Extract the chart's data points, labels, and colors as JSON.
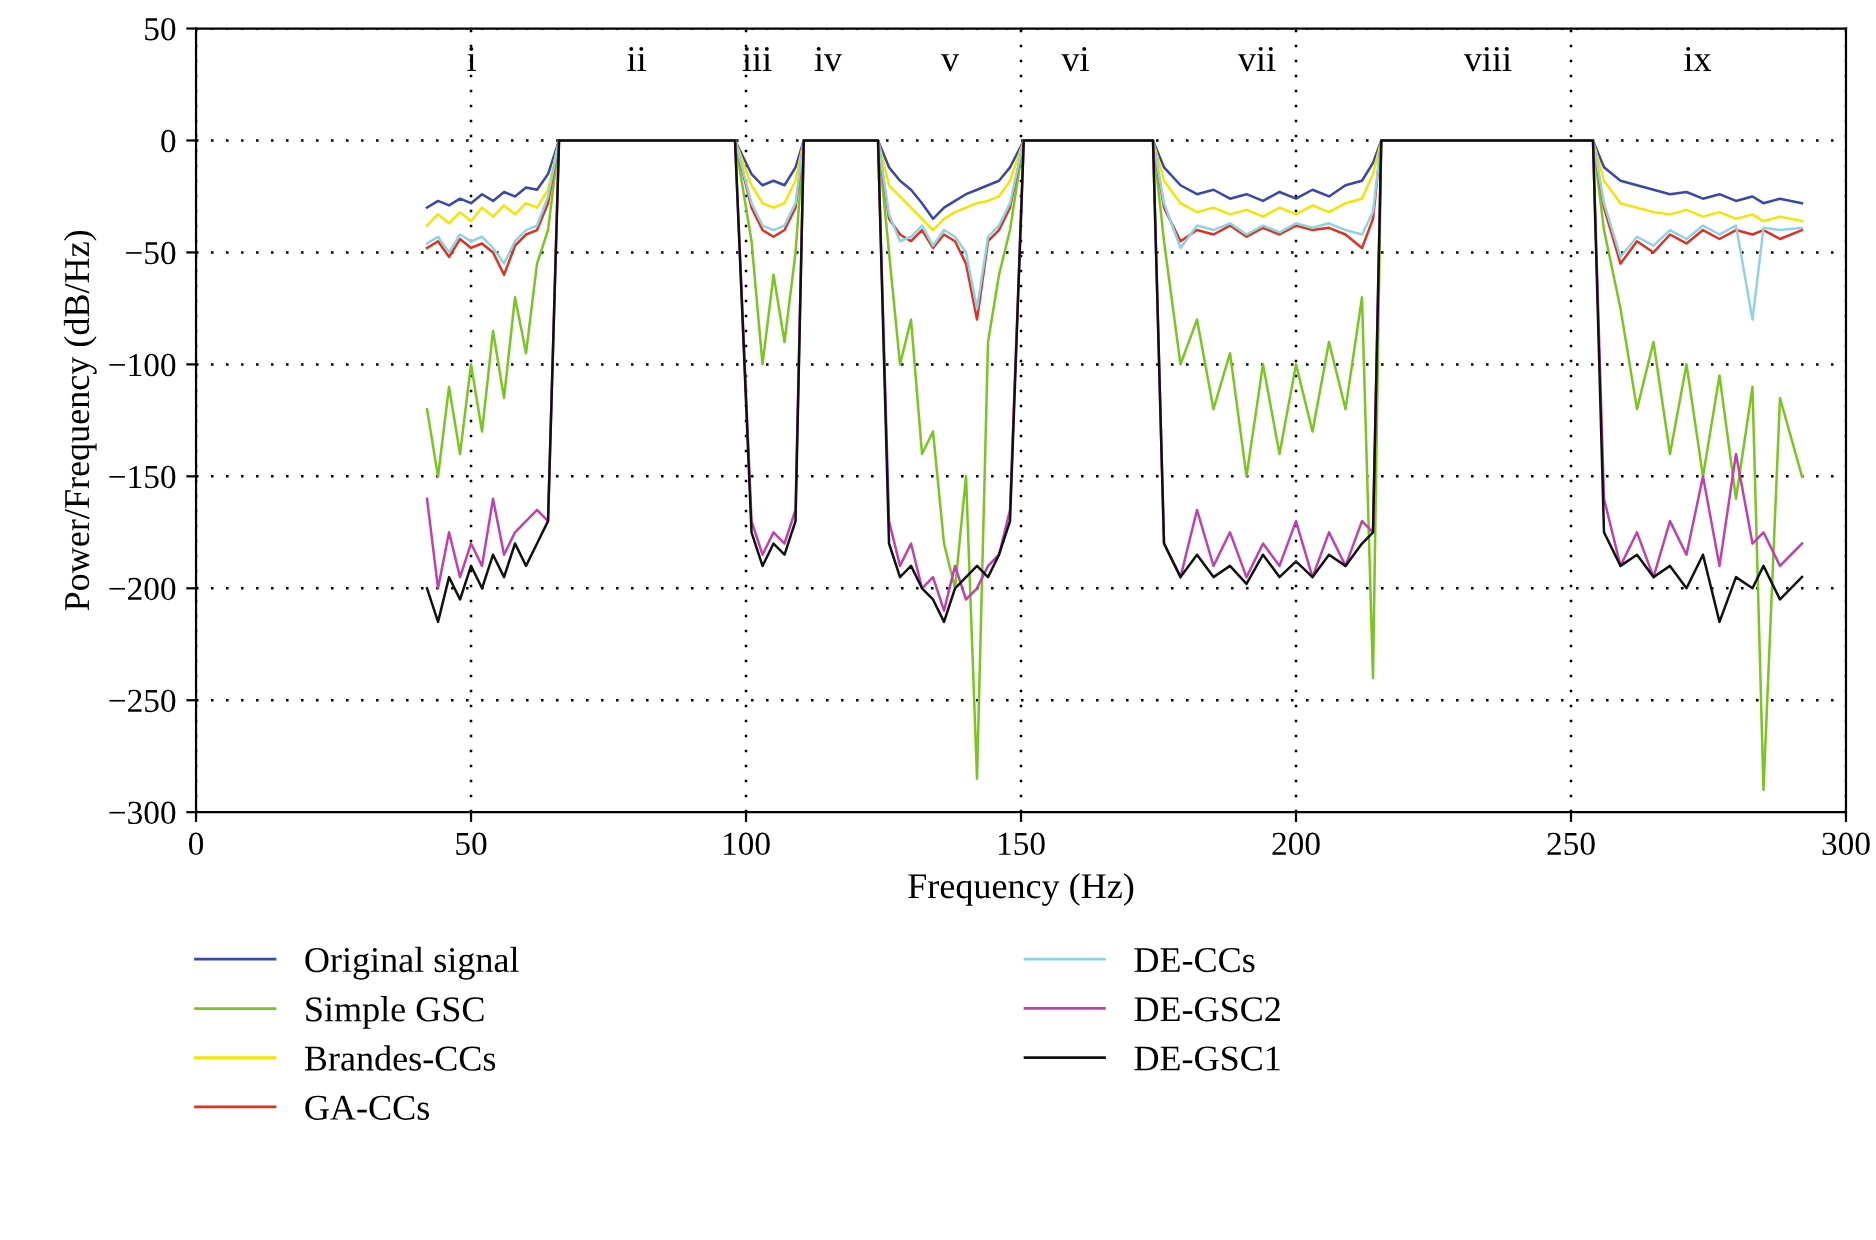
{
  "chart_data": {
    "type": "line",
    "xlabel": "Frequency (Hz)",
    "ylabel": "Power/Frequency (dB/Hz)",
    "xlim": [
      0,
      300
    ],
    "ylim": [
      -300,
      50
    ],
    "xticks": [
      0,
      50,
      100,
      150,
      200,
      250,
      300
    ],
    "yticks": [
      {
        "value": -300,
        "label": "−300"
      },
      {
        "value": -250,
        "label": "−250"
      },
      {
        "value": -200,
        "label": "−200"
      },
      {
        "value": -150,
        "label": "−150"
      },
      {
        "value": -100,
        "label": "−100"
      },
      {
        "value": -50,
        "label": "−50"
      },
      0,
      50
    ],
    "grid": true,
    "legend": "bottom",
    "line_style": "solid",
    "marker": "none",
    "annotations": [
      "i",
      "ii",
      "iii",
      "iv",
      "v",
      "vi",
      "vii",
      "viii",
      "ix"
    ],
    "x": [
      42,
      44,
      46,
      48,
      50,
      52,
      54,
      56,
      58,
      60,
      62,
      64,
      66,
      70,
      80,
      90,
      98,
      101,
      103,
      105,
      107,
      109,
      110.5,
      115,
      120,
      124,
      126,
      128,
      130,
      132,
      134,
      136,
      138,
      140,
      142,
      144,
      146,
      148,
      150.5,
      155,
      160,
      165,
      170,
      174,
      176,
      179,
      182,
      185,
      188,
      191,
      194,
      197,
      200,
      203,
      206,
      209,
      212,
      214,
      215.5,
      225,
      235,
      245,
      254,
      256,
      259,
      262,
      265,
      268,
      271,
      274,
      277,
      280,
      283,
      285,
      288,
      292
    ],
    "series": [
      {
        "name": "Original signal",
        "color": "#3a47a8",
        "values": [
          -30,
          -27,
          -29,
          -26,
          -28,
          -24,
          -27,
          -23,
          -25,
          -21,
          -22,
          -15,
          0,
          0,
          0,
          0,
          0,
          -15,
          -20,
          -18,
          -20,
          -12,
          0,
          0,
          0,
          0,
          -12,
          -18,
          -22,
          -28,
          -35,
          -30,
          -27,
          -24,
          -22,
          -20,
          -18,
          -12,
          0,
          0,
          0,
          0,
          0,
          0,
          -12,
          -20,
          -24,
          -22,
          -26,
          -24,
          -27,
          -23,
          -26,
          -22,
          -25,
          -20,
          -18,
          -10,
          0,
          0,
          0,
          0,
          0,
          -12,
          -18,
          -20,
          -22,
          -24,
          -23,
          -26,
          -24,
          -27,
          -25,
          -28,
          -26,
          -28
        ]
      },
      {
        "name": "Simple GSC",
        "color": "#7ac520",
        "values": [
          -120,
          -150,
          -110,
          -140,
          -100,
          -130,
          -85,
          -115,
          -70,
          -95,
          -55,
          -40,
          0,
          0,
          0,
          0,
          0,
          -45,
          -100,
          -60,
          -90,
          -50,
          0,
          0,
          0,
          0,
          -50,
          -100,
          -80,
          -140,
          -130,
          -180,
          -200,
          -150,
          -285,
          -90,
          -60,
          -40,
          0,
          0,
          0,
          0,
          0,
          0,
          -45,
          -100,
          -80,
          -120,
          -95,
          -150,
          -100,
          -140,
          -100,
          -130,
          -90,
          -120,
          -70,
          -240,
          0,
          0,
          0,
          0,
          0,
          -40,
          -75,
          -120,
          -90,
          -140,
          -100,
          -150,
          -105,
          -160,
          -110,
          -290,
          -115,
          -150
        ]
      },
      {
        "name": "Brandes-CCs",
        "color": "#f5e400",
        "values": [
          -38,
          -33,
          -37,
          -32,
          -36,
          -30,
          -34,
          -29,
          -33,
          -28,
          -30,
          -22,
          0,
          0,
          0,
          0,
          0,
          -20,
          -28,
          -30,
          -28,
          -18,
          0,
          0,
          0,
          0,
          -20,
          -25,
          -30,
          -35,
          -40,
          -35,
          -32,
          -30,
          -28,
          -27,
          -25,
          -18,
          0,
          0,
          0,
          0,
          0,
          0,
          -18,
          -28,
          -32,
          -30,
          -33,
          -31,
          -34,
          -30,
          -33,
          -29,
          -32,
          -28,
          -26,
          -15,
          0,
          0,
          0,
          0,
          0,
          -18,
          -28,
          -30,
          -32,
          -33,
          -31,
          -34,
          -32,
          -35,
          -33,
          -36,
          -34,
          -36
        ]
      },
      {
        "name": "GA-CCs",
        "color": "#e03020",
        "values": [
          -48,
          -45,
          -52,
          -44,
          -48,
          -46,
          -50,
          -60,
          -47,
          -42,
          -40,
          -28,
          0,
          0,
          0,
          0,
          0,
          -30,
          -40,
          -43,
          -40,
          -30,
          0,
          0,
          0,
          0,
          -35,
          -42,
          -45,
          -40,
          -48,
          -42,
          -45,
          -55,
          -80,
          -45,
          -40,
          -30,
          0,
          0,
          0,
          0,
          0,
          0,
          -30,
          -45,
          -40,
          -42,
          -38,
          -43,
          -39,
          -42,
          -38,
          -40,
          -39,
          -42,
          -48,
          -35,
          0,
          0,
          0,
          0,
          0,
          -30,
          -55,
          -45,
          -50,
          -42,
          -46,
          -40,
          -44,
          -40,
          -42,
          -40,
          -44,
          -40
        ]
      },
      {
        "name": "DE-CCs",
        "color": "#8fd3e3",
        "values": [
          -46,
          -43,
          -50,
          -42,
          -45,
          -43,
          -48,
          -55,
          -45,
          -40,
          -38,
          -25,
          0,
          0,
          0,
          0,
          0,
          -28,
          -38,
          -40,
          -38,
          -28,
          0,
          0,
          0,
          0,
          -33,
          -45,
          -43,
          -38,
          -47,
          -40,
          -43,
          -50,
          -75,
          -43,
          -38,
          -28,
          0,
          0,
          0,
          0,
          0,
          0,
          -28,
          -48,
          -38,
          -40,
          -37,
          -42,
          -38,
          -41,
          -37,
          -39,
          -37,
          -40,
          -42,
          -32,
          0,
          0,
          0,
          0,
          0,
          -28,
          -52,
          -43,
          -47,
          -40,
          -44,
          -38,
          -42,
          -38,
          -80,
          -39,
          -40,
          -39
        ]
      },
      {
        "name": "DE-GSC2",
        "color": "#c040b0",
        "values": [
          -160,
          -200,
          -175,
          -195,
          -180,
          -190,
          -160,
          -185,
          -175,
          -170,
          -165,
          -170,
          0,
          0,
          0,
          0,
          0,
          -170,
          -185,
          -175,
          -180,
          -165,
          0,
          0,
          0,
          0,
          -170,
          -190,
          -180,
          -200,
          -195,
          -210,
          -190,
          -205,
          -200,
          -190,
          -185,
          -165,
          0,
          0,
          0,
          0,
          0,
          0,
          -180,
          -195,
          -165,
          -190,
          -175,
          -195,
          -180,
          -190,
          -170,
          -195,
          -175,
          -190,
          -170,
          -175,
          0,
          0,
          0,
          0,
          0,
          -160,
          -190,
          -175,
          -195,
          -170,
          -185,
          -150,
          -190,
          -140,
          -180,
          -175,
          -190,
          -180
        ]
      },
      {
        "name": "DE-GSC1",
        "color": "#111111",
        "values": [
          -200,
          -215,
          -195,
          -205,
          -190,
          -200,
          -185,
          -195,
          -180,
          -190,
          -180,
          -170,
          0,
          0,
          0,
          0,
          0,
          -175,
          -190,
          -180,
          -185,
          -170,
          0,
          0,
          0,
          0,
          -180,
          -195,
          -190,
          -200,
          -205,
          -215,
          -200,
          -195,
          -190,
          -195,
          -185,
          -170,
          0,
          0,
          0,
          0,
          0,
          0,
          -180,
          -195,
          -185,
          -195,
          -190,
          -198,
          -185,
          -195,
          -188,
          -195,
          -185,
          -190,
          -180,
          -175,
          0,
          0,
          0,
          0,
          0,
          -175,
          -190,
          -185,
          -195,
          -190,
          -200,
          -185,
          -215,
          -195,
          -200,
          -190,
          -205,
          -195
        ]
      }
    ]
  }
}
